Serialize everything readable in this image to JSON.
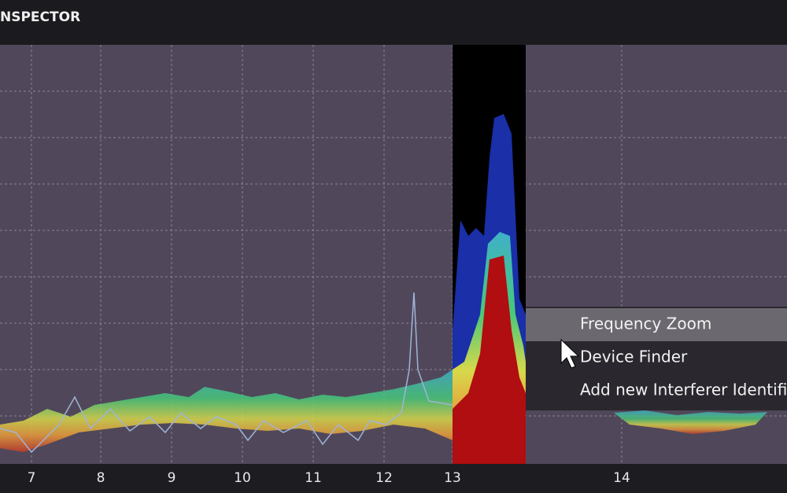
{
  "header": {
    "title": "NSPECTOR"
  },
  "axis": {
    "ticks": [
      7,
      8,
      9,
      10,
      11,
      12,
      13,
      14
    ]
  },
  "menu": {
    "items": [
      "Frequency Zoom",
      "Device Finder",
      "Add new Interferer Identifi"
    ]
  }
}
